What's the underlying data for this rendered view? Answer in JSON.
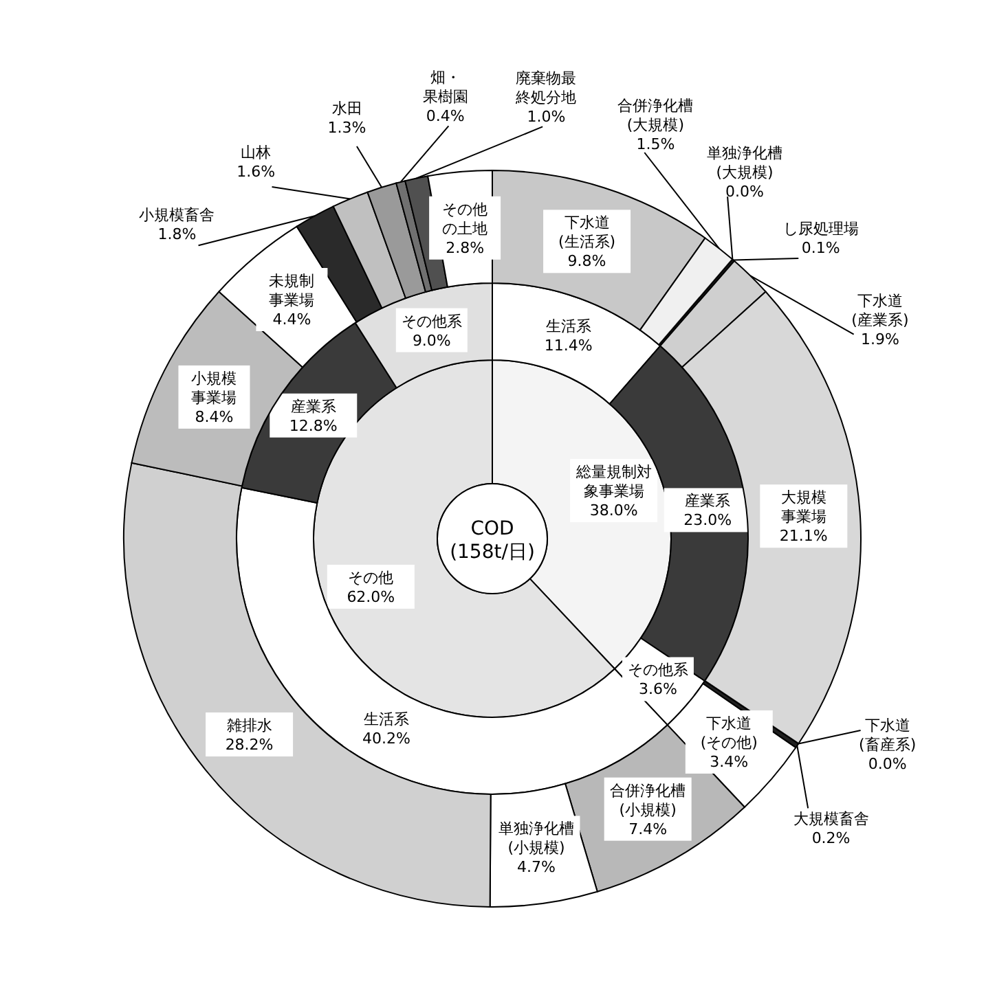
{
  "chart_data": [
    {
      "type": "donut",
      "title": "COD (158t/日)",
      "categories": [
        "総量規制対象事業場",
        "その他"
      ],
      "values": [
        38.0,
        62.0
      ],
      "colors": [
        "#f4f4f4",
        "#e4e4e4"
      ],
      "value_labels": [
        "38.0%",
        "62.0%"
      ]
    },
    {
      "type": "donut",
      "categories": [
        "生活系",
        "産業系",
        "その他系",
        "生活系",
        "産業系",
        "その他系"
      ],
      "values": [
        11.4,
        23.0,
        3.6,
        40.2,
        12.8,
        9.0
      ],
      "colors": [
        "#ffffff",
        "#3a3a3a",
        "#ffffff",
        "#ffffff",
        "#3a3a3a",
        "#e0e0e0"
      ],
      "value_labels": [
        "11.4%",
        "23.0%",
        "3.6%",
        "40.2%",
        "12.8%",
        "9.0%"
      ]
    },
    {
      "type": "donut",
      "categories": [
        "下水道(生活系)",
        "合併浄化槽(大規模)",
        "単独浄化槽(大規模)",
        "し尿処理場",
        "下水道(産業系)",
        "大規模事業場",
        "下水道(畜産系)",
        "大規模畜舎",
        "下水道(その他)",
        "合併浄化槽(小規模)",
        "単独浄化槽(小規模)",
        "雑排水",
        "小規模事業場",
        "未規制事業場",
        "小規模畜舎",
        "山林",
        "水田",
        "畑・果樹園",
        "廃棄物最終処分地",
        "その他の土地"
      ],
      "values": [
        9.8,
        1.5,
        0.0,
        0.1,
        1.9,
        21.1,
        0.0,
        0.2,
        3.4,
        7.4,
        4.7,
        28.2,
        8.4,
        4.4,
        1.8,
        1.6,
        1.3,
        0.4,
        1.0,
        2.8
      ],
      "colors": [
        "#c8c8c8",
        "#f0f0f0",
        "#808080",
        "#202020",
        "#cfcfcf",
        "#d8d8d8",
        "#404040",
        "#202020",
        "#ffffff",
        "#b8b8b8",
        "#ffffff",
        "#d0d0d0",
        "#bcbcbc",
        "#ffffff",
        "#2a2a2a",
        "#c0c0c0",
        "#9a9a9a",
        "#707070",
        "#505050",
        "#ffffff"
      ],
      "value_labels": [
        "9.8%",
        "1.5%",
        "0.0%",
        "0.1%",
        "1.9%",
        "21.1%",
        "0.0%",
        "0.2%",
        "3.4%",
        "7.4%",
        "4.7%",
        "28.2%",
        "8.4%",
        "4.4%",
        "1.8%",
        "1.6%",
        "1.3%",
        "0.4%",
        "1.0%",
        "2.8%"
      ]
    }
  ]
}
